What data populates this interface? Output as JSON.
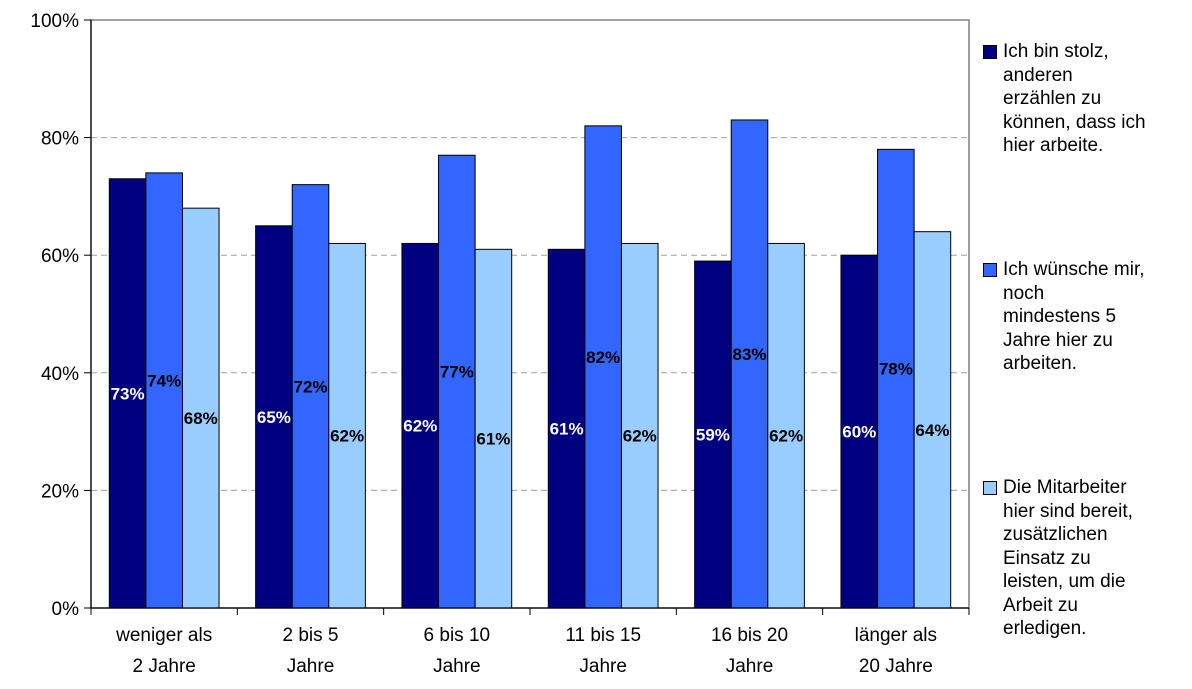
{
  "chart_data": {
    "type": "bar",
    "categories": [
      [
        "weniger als",
        "2 Jahre"
      ],
      [
        "2 bis 5",
        "Jahre"
      ],
      [
        "6 bis 10",
        "Jahre"
      ],
      [
        "11 bis 15",
        "Jahre"
      ],
      [
        "16 bis 20",
        "Jahre"
      ],
      [
        "länger als",
        "20 Jahre"
      ]
    ],
    "series": [
      {
        "name": "Ich bin stolz, anderen erzählen zu können, dass ich hier arbeite.",
        "color": "#000080",
        "label_color": "#ffffff",
        "values": [
          73,
          65,
          62,
          61,
          59,
          60
        ],
        "labels": [
          "73%",
          "65%",
          "62%",
          "61%",
          "59%",
          "60%"
        ]
      },
      {
        "name": "Ich wünsche mir, noch mindestens 5 Jahre hier zu arbeiten.",
        "color": "#3366ff",
        "label_color": "#000000",
        "values": [
          74,
          72,
          77,
          82,
          83,
          78
        ],
        "labels": [
          "74%",
          "72%",
          "77%",
          "82%",
          "83%",
          "78%"
        ]
      },
      {
        "name": "Die Mitarbeiter hier sind bereit, zusätzlichen Einsatz zu leisten, um die Arbeit zu erledigen.",
        "color": "#99ccff",
        "label_color": "#000000",
        "values": [
          68,
          62,
          61,
          62,
          62,
          64
        ],
        "labels": [
          "68%",
          "62%",
          "61%",
          "62%",
          "62%",
          "64%"
        ]
      }
    ],
    "ylim": [
      0,
      100
    ],
    "yticks": [
      "0%",
      "20%",
      "40%",
      "60%",
      "80%",
      "100%"
    ],
    "grid": true,
    "legend_position": "right"
  },
  "legend": [
    {
      "lines": [
        "Ich bin stolz,",
        "anderen",
        "erzählen zu",
        "können, dass ich",
        "hier arbeite."
      ]
    },
    {
      "lines": [
        "Ich wünsche mir,",
        "noch",
        "mindestens 5",
        "Jahre hier zu",
        "arbeiten."
      ]
    },
    {
      "lines": [
        "Die Mitarbeiter",
        "hier sind bereit,",
        "zusätzlichen",
        "Einsatz zu",
        "leisten, um die",
        "Arbeit zu",
        "erledigen."
      ]
    }
  ]
}
